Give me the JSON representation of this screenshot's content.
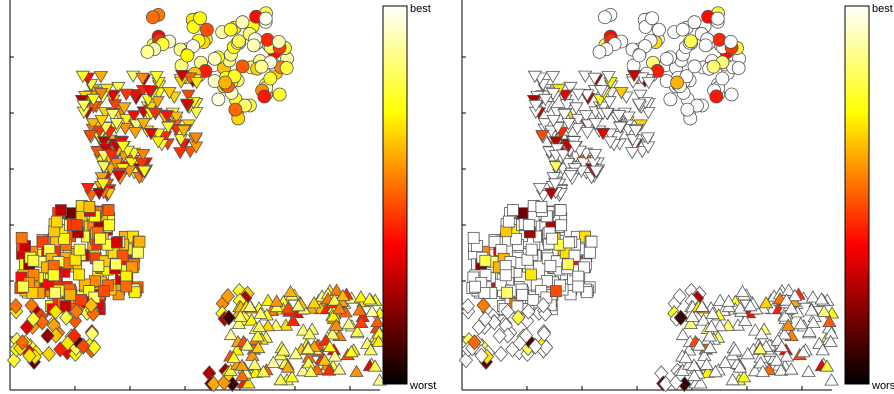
{
  "chart_data": [
    {
      "type": "scatter",
      "panel": "left",
      "description_of_marks": "colored markers (circles, downward triangles, squares, diamonds, upward triangles) in five spatial clusters, colored on a hot colormap",
      "marker_shapes": [
        "circle",
        "triangle-down",
        "square",
        "diamond",
        "triangle-up"
      ],
      "colorbar": {
        "colormap": "hot",
        "top_label": "best",
        "bottom_label": "worst"
      },
      "colormap_stops": [
        "#000000",
        "#ff0000",
        "#ffff00",
        "#ffffff"
      ],
      "grid": false,
      "axis_tick_labels": false,
      "clusters": [
        {
          "shape": "circle",
          "count": 95,
          "value_range": [
            0.35,
            1.0
          ]
        },
        {
          "shape": "triangle-down",
          "count": 190,
          "value_range": [
            0.2,
            0.85
          ]
        },
        {
          "shape": "square",
          "count": 210,
          "value_range": [
            0.15,
            0.85
          ]
        },
        {
          "shape": "diamond",
          "count": 75,
          "value_range": [
            0.05,
            0.85
          ]
        },
        {
          "shape": "triangle-up",
          "count": 170,
          "value_range": [
            0.3,
            0.9
          ]
        }
      ]
    },
    {
      "type": "scatter",
      "panel": "right",
      "description_of_marks": "same point layout as left panel; most markers white (best), a minority colored",
      "marker_shapes": [
        "circle",
        "triangle-down",
        "square",
        "diamond",
        "triangle-up"
      ],
      "colorbar": {
        "colormap": "hot",
        "top_label": "best",
        "bottom_label": "worst"
      },
      "colormap_stops": [
        "#000000",
        "#ff0000",
        "#ffff00",
        "#ffffff"
      ],
      "grid": false,
      "axis_tick_labels": false,
      "fraction_white": 0.85
    }
  ],
  "colors": {
    "marker_edge": "#555555",
    "axis": "#000000"
  }
}
